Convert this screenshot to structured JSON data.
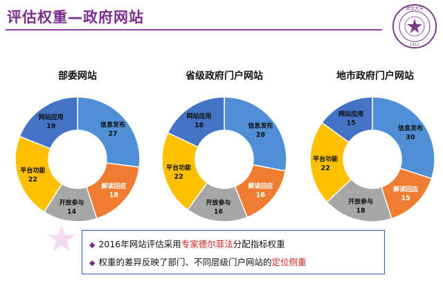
{
  "slide": {
    "title": "评估权重—政府网站",
    "colors": {
      "title": "#7a2c8c",
      "rule": "#8e3fa0",
      "highlight": "#d21f1f"
    }
  },
  "seal": {
    "icon": "university-seal-icon",
    "top_text": "清华大学",
    "year": "1911"
  },
  "chart_data": [
    {
      "type": "pie",
      "donut": true,
      "title": "部委网站",
      "categories": [
        "信息发布",
        "解读回应",
        "开放参与",
        "平台功能",
        "网站应用"
      ],
      "values": [
        27,
        18,
        14,
        22,
        19
      ],
      "colors": [
        "#4f8fd6",
        "#ee7d32",
        "#a6a6a6",
        "#ffc000",
        "#4472c4"
      ]
    },
    {
      "type": "pie",
      "donut": true,
      "title": "省级政府门户网站",
      "categories": [
        "信息发布",
        "解读回应",
        "开放参与",
        "平台功能",
        "网站应用"
      ],
      "values": [
        28,
        16,
        16,
        22,
        18
      ],
      "colors": [
        "#4f8fd6",
        "#ee7d32",
        "#a6a6a6",
        "#ffc000",
        "#4472c4"
      ]
    },
    {
      "type": "pie",
      "donut": true,
      "title": "地市政府门户网站",
      "categories": [
        "信息发布",
        "解读回应",
        "开放参与",
        "平台功能",
        "网站应用"
      ],
      "values": [
        30,
        15,
        18,
        22,
        15
      ],
      "colors": [
        "#4f8fd6",
        "#ee7d32",
        "#a6a6a6",
        "#ffc000",
        "#4472c4"
      ]
    }
  ],
  "notes": {
    "line1": {
      "before": "2016年网站评估采用",
      "highlight": "专家德尔菲法",
      "after": "分配指标权重"
    },
    "line2": {
      "before": "权重的差异反映了部门、不同层级门户网站的",
      "highlight": "定位侧重",
      "after": ""
    }
  }
}
